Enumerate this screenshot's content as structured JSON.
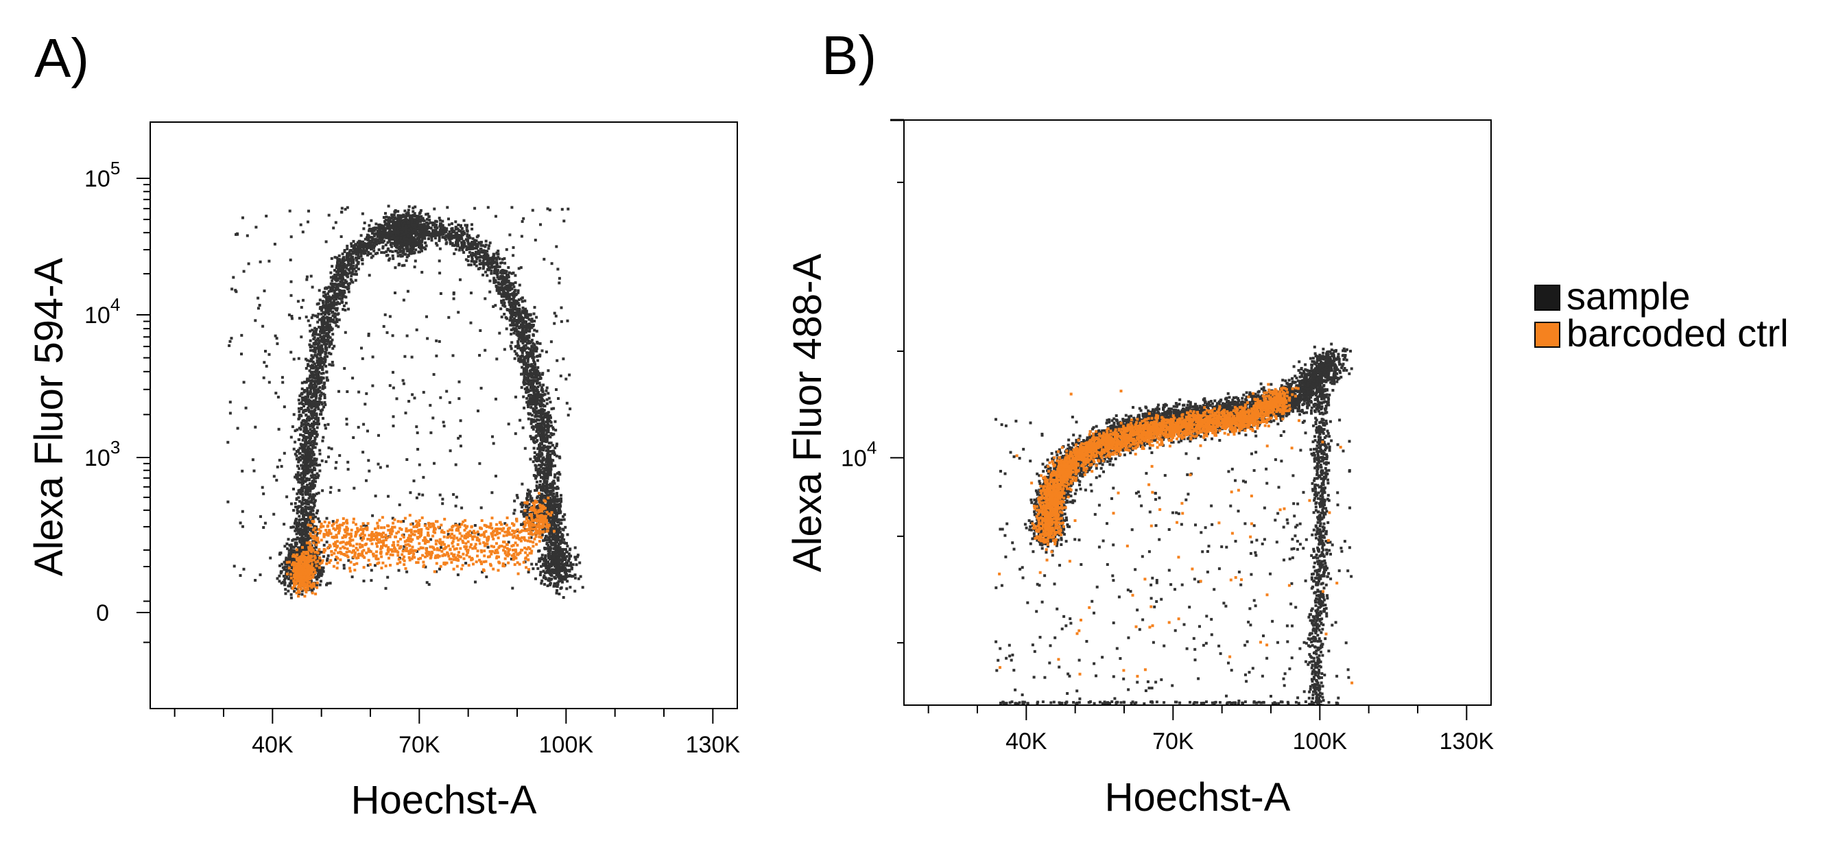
{
  "colors": {
    "sample": "#333333",
    "barcoded_ctrl": "#f5821f",
    "frame": "#000000"
  },
  "legend": {
    "position": "right",
    "items": [
      {
        "key": "sample",
        "label": "sample",
        "color": "#1a1a1a"
      },
      {
        "key": "barcoded_ctrl",
        "label": "barcoded ctrl",
        "color": "#f5821f"
      }
    ]
  },
  "chart_data": [
    {
      "panel": "A)",
      "type": "scatter",
      "xlabel": "Hoechst-A",
      "ylabel": "Alexa Fluor 594-A",
      "x_scale": "linear",
      "y_scale": "biexponential",
      "xlim": [
        15000,
        135000
      ],
      "x_ticks": [
        {
          "value": 40000,
          "label": "40K"
        },
        {
          "value": 70000,
          "label": "70K"
        },
        {
          "value": 100000,
          "label": "100K"
        },
        {
          "value": 130000,
          "label": "130K"
        }
      ],
      "y_ticks": [
        {
          "value": 0,
          "label": "0"
        },
        {
          "value": 1000,
          "label": "10",
          "exp": "3"
        },
        {
          "value": 10000,
          "label": "10",
          "exp": "4"
        },
        {
          "value": 100000,
          "label": "10",
          "exp": "5"
        }
      ],
      "series": [
        {
          "name": "sample",
          "color": "#333333",
          "clusters": [
            {
              "x": 46000,
              "y": 150,
              "n": 600
            },
            {
              "x": 98000,
              "y": 150,
              "n": 250
            },
            {
              "x": 94000,
              "y": 400,
              "n": 200
            },
            {
              "x": 67000,
              "y": 40000,
              "n": 700
            }
          ],
          "arc_path": [
            [
              46000,
              150
            ],
            [
              47000,
              1500
            ],
            [
              50000,
              8000
            ],
            [
              55000,
              25000
            ],
            [
              62000,
              42000
            ],
            [
              70000,
              45000
            ],
            [
              78000,
              38000
            ],
            [
              86000,
              22000
            ],
            [
              91000,
              8000
            ],
            [
              95000,
              1500
            ],
            [
              98000,
              150
            ]
          ]
        },
        {
          "name": "barcoded ctrl",
          "color": "#f5821f",
          "clusters": [
            {
              "x": 46000,
              "y": 140,
              "n": 350
            },
            {
              "x": 94000,
              "y": 350,
              "n": 150
            }
          ],
          "band": {
            "x_from": 47000,
            "x_to": 93000,
            "y_from": 160,
            "y_to": 320
          }
        }
      ]
    },
    {
      "panel": "B)",
      "type": "scatter",
      "xlabel": "Hoechst-A",
      "ylabel": "Alexa Fluor 488-A",
      "x_scale": "linear",
      "y_scale": "log",
      "xlim": [
        15000,
        135000
      ],
      "ylim": [
        2000,
        90000
      ],
      "x_ticks": [
        {
          "value": 40000,
          "label": "40K"
        },
        {
          "value": 70000,
          "label": "70K"
        },
        {
          "value": 100000,
          "label": "100K"
        },
        {
          "value": 130000,
          "label": "130K"
        }
      ],
      "y_ticks": [
        {
          "value": 10000,
          "label": "10",
          "exp": "4"
        }
      ],
      "series": [
        {
          "name": "sample",
          "color": "#333333",
          "main_path": [
            [
              44000,
              6000
            ],
            [
              45000,
              8000
            ],
            [
              48000,
              9500
            ],
            [
              55000,
              11000
            ],
            [
              65000,
              12500
            ],
            [
              75000,
              13000
            ],
            [
              85000,
              13500
            ],
            [
              95000,
              15000
            ],
            [
              103000,
              19000
            ]
          ],
          "descent_path": [
            [
              100000,
              16000
            ],
            [
              100000,
              8000
            ],
            [
              100000,
              5000
            ],
            [
              99000,
              3000
            ],
            [
              99000,
              2000
            ]
          ]
        },
        {
          "name": "barcoded ctrl",
          "color": "#f5821f",
          "main_path": [
            [
              44000,
              6000
            ],
            [
              45000,
              8000
            ],
            [
              48000,
              9500
            ],
            [
              55000,
              11000
            ],
            [
              65000,
              12000
            ],
            [
              75000,
              12500
            ],
            [
              85000,
              13000
            ],
            [
              93000,
              15000
            ]
          ]
        }
      ]
    }
  ]
}
